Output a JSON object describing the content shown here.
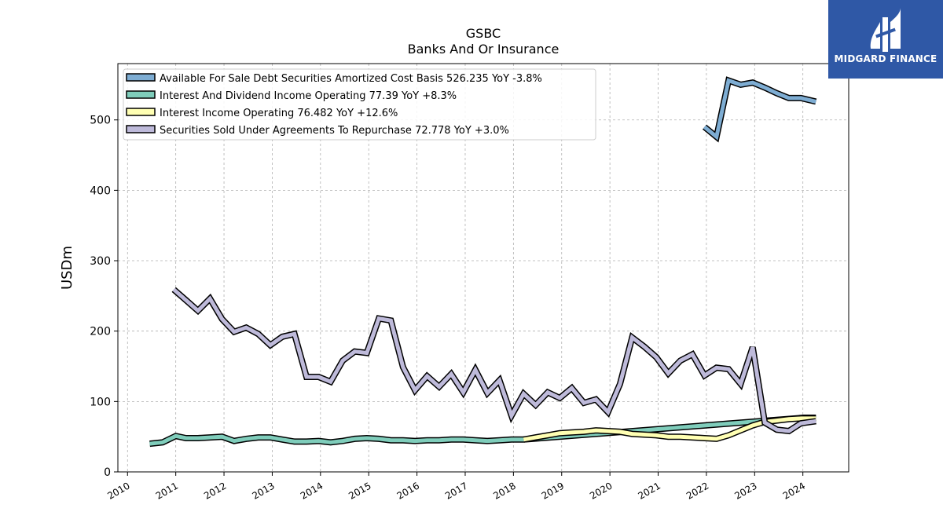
{
  "header": {
    "title": "GSBC",
    "subtitle": "Banks And Or Insurance"
  },
  "logo": {
    "text": "MIDGARD FINANCE",
    "icon": "midgard-bars-icon",
    "background": "#2f58a6"
  },
  "chart_data": {
    "type": "line",
    "ylabel": "USDm",
    "xlim": [
      2009.8,
      2024.95
    ],
    "ylim": [
      0,
      580
    ],
    "yticks": [
      0,
      100,
      200,
      300,
      400,
      500
    ],
    "xticks": [
      "2010",
      "2011",
      "2012",
      "2013",
      "2014",
      "2015",
      "2016",
      "2017",
      "2018",
      "2019",
      "2020",
      "2021",
      "2022",
      "2023",
      "2024"
    ],
    "grid": true,
    "legend_position": "top-left",
    "series": [
      {
        "name": "Available For Sale Debt Securities Amortized Cost Basis",
        "legend_label": "Available For Sale Debt Securities Amortized Cost Basis  526.235 YoY -3.8%",
        "color": "#7eadd3",
        "points": [
          [
            2021.96,
            490
          ],
          [
            2022.21,
            476
          ],
          [
            2022.46,
            556
          ],
          [
            2022.71,
            550
          ],
          [
            2022.96,
            553
          ],
          [
            2023.21,
            546
          ],
          [
            2023.46,
            538
          ],
          [
            2023.71,
            531
          ],
          [
            2023.96,
            531
          ],
          [
            2024.27,
            526
          ]
        ]
      },
      {
        "name": "Interest And Dividend Income Operating",
        "legend_label": "Interest And Dividend Income Operating  77.39 YoY +8.3%",
        "color": "#7fcdbb",
        "points": [
          [
            2010.46,
            40
          ],
          [
            2010.73,
            42
          ],
          [
            2011.0,
            51
          ],
          [
            2011.21,
            48
          ],
          [
            2011.46,
            48
          ],
          [
            2011.71,
            49
          ],
          [
            2011.96,
            50
          ],
          [
            2012.21,
            44
          ],
          [
            2012.46,
            47
          ],
          [
            2012.71,
            49
          ],
          [
            2012.96,
            49
          ],
          [
            2013.21,
            46
          ],
          [
            2013.46,
            43
          ],
          [
            2013.71,
            43
          ],
          [
            2013.96,
            44
          ],
          [
            2014.21,
            42
          ],
          [
            2014.46,
            44
          ],
          [
            2014.71,
            47
          ],
          [
            2014.96,
            48
          ],
          [
            2015.21,
            47
          ],
          [
            2015.46,
            45
          ],
          [
            2015.71,
            45
          ],
          [
            2015.96,
            44
          ],
          [
            2016.21,
            45
          ],
          [
            2016.46,
            45
          ],
          [
            2016.71,
            46
          ],
          [
            2016.96,
            46
          ],
          [
            2017.21,
            45
          ],
          [
            2017.46,
            44
          ],
          [
            2017.71,
            45
          ],
          [
            2017.96,
            46
          ],
          [
            2018.21,
            46
          ],
          [
            2024.02,
            77
          ],
          [
            2024.27,
            77
          ]
        ]
      },
      {
        "name": "Interest Income Operating",
        "legend_label": "Interest Income Operating  76.482 YoY +12.6%",
        "color": "#ffffb3",
        "points": [
          [
            2018.21,
            46
          ],
          [
            2018.46,
            49
          ],
          [
            2018.71,
            52
          ],
          [
            2018.96,
            55
          ],
          [
            2019.21,
            56
          ],
          [
            2019.46,
            57
          ],
          [
            2019.71,
            59
          ],
          [
            2019.96,
            58
          ],
          [
            2020.21,
            57
          ],
          [
            2020.46,
            54
          ],
          [
            2020.71,
            53
          ],
          [
            2020.96,
            52
          ],
          [
            2021.21,
            50
          ],
          [
            2021.46,
            50
          ],
          [
            2021.71,
            49
          ],
          [
            2021.96,
            48
          ],
          [
            2022.21,
            47
          ],
          [
            2022.46,
            52
          ],
          [
            2022.71,
            59
          ],
          [
            2022.96,
            66
          ],
          [
            2023.21,
            71
          ],
          [
            2023.46,
            73
          ],
          [
            2023.71,
            75
          ],
          [
            2023.96,
            76
          ],
          [
            2024.27,
            76
          ]
        ]
      },
      {
        "name": "Securities Sold Under Agreements To Repurchase",
        "legend_label": "Securities Sold Under Agreements To Repurchase  72.778 YoY +3.0%",
        "color": "#bebada",
        "points": [
          [
            2010.96,
            259
          ],
          [
            2011.21,
            244
          ],
          [
            2011.46,
            229
          ],
          [
            2011.71,
            246
          ],
          [
            2011.96,
            217
          ],
          [
            2012.21,
            199
          ],
          [
            2012.46,
            205
          ],
          [
            2012.71,
            196
          ],
          [
            2012.96,
            180
          ],
          [
            2013.21,
            192
          ],
          [
            2013.46,
            196
          ],
          [
            2013.71,
            135
          ],
          [
            2013.96,
            135
          ],
          [
            2014.21,
            128
          ],
          [
            2014.46,
            158
          ],
          [
            2014.71,
            171
          ],
          [
            2014.96,
            169
          ],
          [
            2015.21,
            218
          ],
          [
            2015.46,
            215
          ],
          [
            2015.71,
            149
          ],
          [
            2015.96,
            116
          ],
          [
            2016.21,
            136
          ],
          [
            2016.46,
            121
          ],
          [
            2016.71,
            139
          ],
          [
            2016.96,
            113
          ],
          [
            2017.21,
            145
          ],
          [
            2017.46,
            112
          ],
          [
            2017.71,
            130
          ],
          [
            2017.96,
            80
          ],
          [
            2018.21,
            111
          ],
          [
            2018.46,
            95
          ],
          [
            2018.71,
            113
          ],
          [
            2018.96,
            105
          ],
          [
            2019.21,
            119
          ],
          [
            2019.46,
            98
          ],
          [
            2019.71,
            103
          ],
          [
            2019.96,
            85
          ],
          [
            2020.21,
            125
          ],
          [
            2020.46,
            191
          ],
          [
            2020.71,
            178
          ],
          [
            2020.96,
            163
          ],
          [
            2021.21,
            140
          ],
          [
            2021.46,
            158
          ],
          [
            2021.71,
            167
          ],
          [
            2021.96,
            137
          ],
          [
            2022.21,
            148
          ],
          [
            2022.46,
            146
          ],
          [
            2022.71,
            125
          ],
          [
            2022.96,
            177
          ],
          [
            2023.21,
            70
          ],
          [
            2023.46,
            60
          ],
          [
            2023.71,
            58
          ],
          [
            2023.96,
            69
          ],
          [
            2024.27,
            72
          ]
        ]
      }
    ]
  }
}
